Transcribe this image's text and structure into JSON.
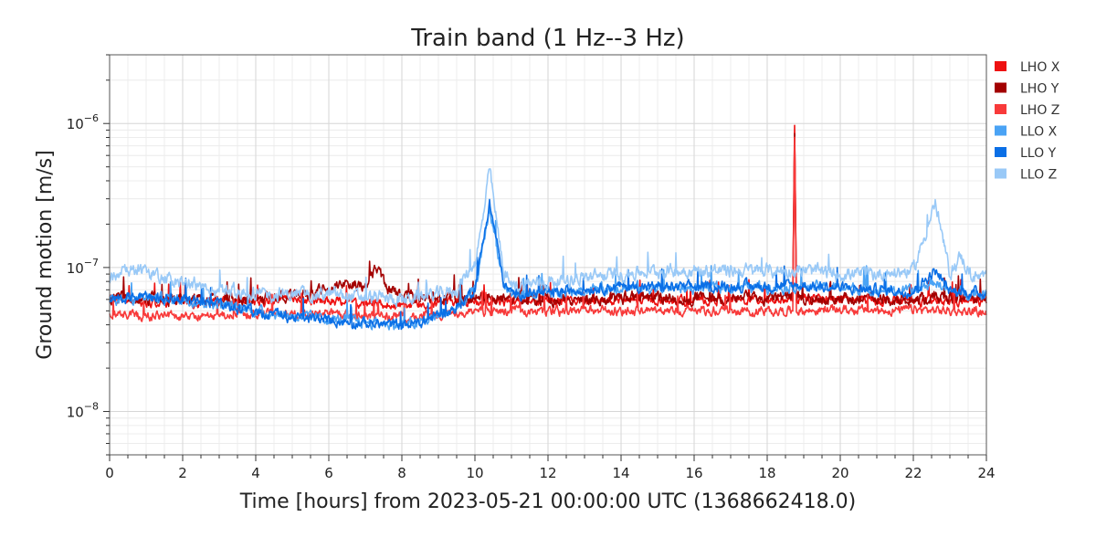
{
  "chart_data": {
    "type": "line",
    "title": "Train band (1 Hz--3 Hz)",
    "xlabel": "Time [hours] from 2023-05-21 00:00:00 UTC (1368662418.0)",
    "ylabel": "Ground motion [m/s]",
    "xlim": [
      0,
      24
    ],
    "ylim": [
      5e-09,
      3e-06
    ],
    "yscale": "log",
    "grid": true,
    "legend_position": "top-right, outside plot",
    "x_ticks": [
      0,
      2,
      4,
      6,
      8,
      10,
      12,
      14,
      16,
      18,
      20,
      22,
      24
    ],
    "x_tick_labels": [
      "0",
      "2",
      "4",
      "6",
      "8",
      "10",
      "12",
      "14",
      "16",
      "18",
      "20",
      "22",
      "24"
    ],
    "y_ticks": [
      1e-08,
      1e-07,
      1e-06
    ],
    "y_tick_labels": [
      {
        "base": "10",
        "exp": "−8"
      },
      {
        "base": "10",
        "exp": "−7"
      },
      {
        "base": "10",
        "exp": "−6"
      }
    ],
    "series": [
      {
        "name": "LHO X",
        "color": "#ee1111",
        "noise": 0.06,
        "points": [
          [
            0,
            6e-08
          ],
          [
            1,
            5.8e-08
          ],
          [
            2,
            5.7e-08
          ],
          [
            3,
            5.8e-08
          ],
          [
            4,
            5.8e-08
          ],
          [
            5,
            5.9e-08
          ],
          [
            6,
            5.9e-08
          ],
          [
            7,
            5.6e-08
          ],
          [
            8,
            5.5e-08
          ],
          [
            9,
            5.7e-08
          ],
          [
            10,
            5.8e-08
          ],
          [
            11,
            5.8e-08
          ],
          [
            12,
            5.8e-08
          ],
          [
            13,
            5.9e-08
          ],
          [
            14,
            5.9e-08
          ],
          [
            15,
            5.9e-08
          ],
          [
            16,
            5.9e-08
          ],
          [
            17,
            5.9e-08
          ],
          [
            18,
            6e-08
          ],
          [
            18.7,
            6e-08
          ],
          [
            18.75,
            9e-07
          ],
          [
            18.8,
            6e-08
          ],
          [
            19,
            6e-08
          ],
          [
            20,
            6e-08
          ],
          [
            21,
            5.9e-08
          ],
          [
            22,
            5.9e-08
          ],
          [
            23,
            5.8e-08
          ],
          [
            24,
            5.9e-08
          ]
        ]
      },
      {
        "name": "LHO Y",
        "color": "#a30000",
        "noise": 0.08,
        "points": [
          [
            0,
            6.2e-08
          ],
          [
            1,
            6e-08
          ],
          [
            2,
            6e-08
          ],
          [
            3,
            6e-08
          ],
          [
            4,
            6.1e-08
          ],
          [
            5,
            6.2e-08
          ],
          [
            5.5,
            6.6e-08
          ],
          [
            6,
            7.2e-08
          ],
          [
            6.5,
            8e-08
          ],
          [
            7,
            7.2e-08
          ],
          [
            7.3,
            1e-07
          ],
          [
            7.6,
            7e-08
          ],
          [
            8,
            6.4e-08
          ],
          [
            9,
            6.2e-08
          ],
          [
            10,
            6.2e-08
          ],
          [
            11,
            6e-08
          ],
          [
            12,
            6e-08
          ],
          [
            13,
            6.1e-08
          ],
          [
            14,
            6.1e-08
          ],
          [
            15,
            6.2e-08
          ],
          [
            16,
            6.1e-08
          ],
          [
            17,
            6.1e-08
          ],
          [
            18,
            6.1e-08
          ],
          [
            18.7,
            6.2e-08
          ],
          [
            18.75,
            9.2e-07
          ],
          [
            18.8,
            6.2e-08
          ],
          [
            19,
            6.1e-08
          ],
          [
            20,
            6e-08
          ],
          [
            21,
            6e-08
          ],
          [
            22,
            6e-08
          ],
          [
            23,
            6.1e-08
          ],
          [
            24,
            6.1e-08
          ]
        ]
      },
      {
        "name": "LHO Z",
        "color": "#f83a3a",
        "noise": 0.06,
        "points": [
          [
            0,
            4.8e-08
          ],
          [
            1,
            4.6e-08
          ],
          [
            2,
            4.6e-08
          ],
          [
            3,
            4.6e-08
          ],
          [
            4,
            4.8e-08
          ],
          [
            5,
            4.8e-08
          ],
          [
            6,
            4.8e-08
          ],
          [
            7,
            4.6e-08
          ],
          [
            8,
            4.5e-08
          ],
          [
            9,
            4.7e-08
          ],
          [
            10,
            4.9e-08
          ],
          [
            11,
            5e-08
          ],
          [
            12,
            4.9e-08
          ],
          [
            13,
            5e-08
          ],
          [
            14,
            5e-08
          ],
          [
            15,
            5e-08
          ],
          [
            16,
            5.1e-08
          ],
          [
            17,
            5e-08
          ],
          [
            18,
            5e-08
          ],
          [
            18.7,
            5e-08
          ],
          [
            18.75,
            8.5e-07
          ],
          [
            18.8,
            5e-08
          ],
          [
            19,
            5e-08
          ],
          [
            20,
            5.1e-08
          ],
          [
            21,
            5e-08
          ],
          [
            22,
            5.1e-08
          ],
          [
            23,
            5e-08
          ],
          [
            24,
            4.9e-08
          ]
        ]
      },
      {
        "name": "LLO X",
        "color": "#4aa3f5",
        "noise": 0.07,
        "points": [
          [
            0,
            6e-08
          ],
          [
            1,
            6.2e-08
          ],
          [
            2,
            6e-08
          ],
          [
            3,
            5.6e-08
          ],
          [
            4,
            5e-08
          ],
          [
            5,
            4.6e-08
          ],
          [
            6,
            4.4e-08
          ],
          [
            7,
            4.2e-08
          ],
          [
            8,
            4e-08
          ],
          [
            8.5,
            4.1e-08
          ],
          [
            9,
            4.6e-08
          ],
          [
            9.5,
            5.2e-08
          ],
          [
            10,
            7e-08
          ],
          [
            10.2,
            1.3e-07
          ],
          [
            10.4,
            2.6e-07
          ],
          [
            10.6,
            1.4e-07
          ],
          [
            10.8,
            7.5e-08
          ],
          [
            11,
            6.5e-08
          ],
          [
            12,
            6.5e-08
          ],
          [
            13,
            7e-08
          ],
          [
            14,
            7.3e-08
          ],
          [
            15,
            7.2e-08
          ],
          [
            16,
            7.2e-08
          ],
          [
            17,
            7.3e-08
          ],
          [
            18,
            7.3e-08
          ],
          [
            19,
            7.4e-08
          ],
          [
            20,
            7.2e-08
          ],
          [
            21,
            7e-08
          ],
          [
            22,
            6.8e-08
          ],
          [
            22.6,
            8e-08
          ],
          [
            23,
            6.8e-08
          ],
          [
            24,
            6.6e-08
          ]
        ]
      },
      {
        "name": "LLO Y",
        "color": "#0a6fe6",
        "noise": 0.07,
        "points": [
          [
            0,
            6.1e-08
          ],
          [
            1,
            6.2e-08
          ],
          [
            2,
            6e-08
          ],
          [
            3,
            5.5e-08
          ],
          [
            4,
            4.9e-08
          ],
          [
            5,
            4.5e-08
          ],
          [
            6,
            4.3e-08
          ],
          [
            7,
            4.1e-08
          ],
          [
            8,
            4e-08
          ],
          [
            8.5,
            4.1e-08
          ],
          [
            9,
            4.7e-08
          ],
          [
            9.5,
            5.2e-08
          ],
          [
            10,
            7.2e-08
          ],
          [
            10.2,
            1.4e-07
          ],
          [
            10.4,
            2.8e-07
          ],
          [
            10.6,
            1.5e-07
          ],
          [
            10.8,
            7.5e-08
          ],
          [
            11,
            6.6e-08
          ],
          [
            12,
            6.6e-08
          ],
          [
            13,
            7.1e-08
          ],
          [
            14,
            7.4e-08
          ],
          [
            15,
            7.3e-08
          ],
          [
            16,
            7.3e-08
          ],
          [
            17,
            7.4e-08
          ],
          [
            18,
            7.4e-08
          ],
          [
            19,
            7.5e-08
          ],
          [
            20,
            7.2e-08
          ],
          [
            21,
            7e-08
          ],
          [
            22,
            6.8e-08
          ],
          [
            22.6,
            9.5e-08
          ],
          [
            23,
            6.8e-08
          ],
          [
            24,
            6.7e-08
          ]
        ]
      },
      {
        "name": "LLO Z",
        "color": "#99c9f7",
        "noise": 0.09,
        "points": [
          [
            0,
            8e-08
          ],
          [
            0.7,
            1e-07
          ],
          [
            1,
            9e-08
          ],
          [
            2,
            8e-08
          ],
          [
            3,
            7e-08
          ],
          [
            4,
            6.5e-08
          ],
          [
            5,
            6.5e-08
          ],
          [
            6,
            6.5e-08
          ],
          [
            7,
            6.2e-08
          ],
          [
            8,
            6e-08
          ],
          [
            9,
            6.5e-08
          ],
          [
            9.5,
            7e-08
          ],
          [
            10,
            1.1e-07
          ],
          [
            10.2,
            2e-07
          ],
          [
            10.4,
            4.8e-07
          ],
          [
            10.6,
            2e-07
          ],
          [
            10.8,
            9e-08
          ],
          [
            11,
            7.5e-08
          ],
          [
            12,
            8e-08
          ],
          [
            13,
            8.5e-08
          ],
          [
            14,
            9e-08
          ],
          [
            15,
            9.5e-08
          ],
          [
            16,
            9.5e-08
          ],
          [
            17,
            9.5e-08
          ],
          [
            18,
            9.5e-08
          ],
          [
            19,
            9.5e-08
          ],
          [
            20,
            9e-08
          ],
          [
            21,
            9e-08
          ],
          [
            22,
            9.5e-08
          ],
          [
            22.6,
            2.8e-07
          ],
          [
            23,
            9e-08
          ],
          [
            23.3,
            1.2e-07
          ],
          [
            23.6,
            8.5e-08
          ],
          [
            24,
            8.5e-08
          ]
        ]
      }
    ]
  }
}
